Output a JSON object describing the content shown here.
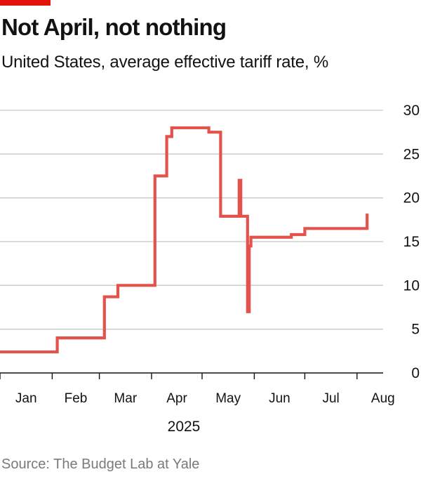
{
  "title": "Not April, not nothing",
  "subtitle": "United States, average effective tariff rate, %",
  "source": "Source: The Budget Lab at Yale",
  "colors": {
    "accent": "#e3120b",
    "line": "#e3534b",
    "grid": "#c8c8c8",
    "axis": "#121212"
  },
  "chart_data": {
    "type": "line",
    "step": true,
    "title": "Not April, not nothing",
    "subtitle": "United States, average effective tariff rate, %",
    "xlabel": "2025",
    "ylabel": "",
    "x_tick_labels": [
      "Jan",
      "Feb",
      "Mar",
      "Apr",
      "May",
      "Jun",
      "Jul",
      "Aug"
    ],
    "y_ticks": [
      0,
      5,
      10,
      15,
      20,
      25,
      30
    ],
    "ylim": [
      0,
      30
    ],
    "xlim": [
      "2025-01-01",
      "2025-08-18"
    ],
    "grid": true,
    "y_axis_side": "right",
    "series": [
      {
        "values": [
          {
            "x": "2025-01-01",
            "y": 2.4
          },
          {
            "x": "2025-02-04",
            "y": 4.0
          },
          {
            "x": "2025-03-04",
            "y": 8.7
          },
          {
            "x": "2025-03-12",
            "y": 10.0
          },
          {
            "x": "2025-04-03",
            "y": 22.5
          },
          {
            "x": "2025-04-10",
            "y": 27.0
          },
          {
            "x": "2025-04-13",
            "y": 28.0
          },
          {
            "x": "2025-05-05",
            "y": 27.5
          },
          {
            "x": "2025-05-12",
            "y": 17.9
          },
          {
            "x": "2025-05-23",
            "y": 22.0
          },
          {
            "x": "2025-05-24",
            "y": 17.9
          },
          {
            "x": "2025-05-28",
            "y": 7.0
          },
          {
            "x": "2025-05-29",
            "y": 14.5
          },
          {
            "x": "2025-05-30",
            "y": 15.5
          },
          {
            "x": "2025-06-23",
            "y": 15.8
          },
          {
            "x": "2025-07-01",
            "y": 16.5
          },
          {
            "x": "2025-08-07",
            "y": 18.2
          }
        ]
      }
    ]
  }
}
